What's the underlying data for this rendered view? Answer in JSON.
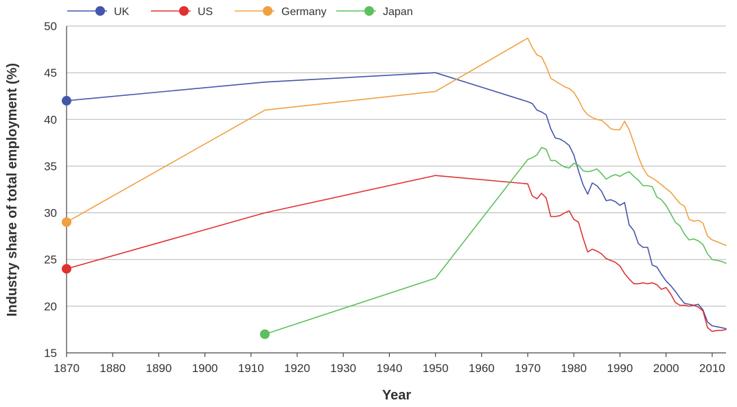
{
  "chart_data": {
    "type": "line",
    "title": "",
    "xlabel": "Year",
    "ylabel": "Industry share of total employment (%)",
    "xlim": [
      1870,
      2013
    ],
    "ylim": [
      15,
      50
    ],
    "x_ticks": [
      1870,
      1880,
      1890,
      1900,
      1910,
      1920,
      1930,
      1940,
      1950,
      1960,
      1970,
      1980,
      1990,
      2000,
      2010
    ],
    "y_ticks": [
      15,
      20,
      25,
      30,
      35,
      40,
      45,
      50
    ],
    "grid": "horizontal",
    "legend": "top-left",
    "series": [
      {
        "name": "UK",
        "color": "#4455aa",
        "start_marker": true,
        "points": [
          [
            1870,
            42.0
          ],
          [
            1913,
            44.0
          ],
          [
            1950,
            45.0
          ],
          [
            1970,
            41.9
          ],
          [
            1971,
            41.7
          ],
          [
            1972,
            41.0
          ],
          [
            1973,
            40.8
          ],
          [
            1974,
            40.5
          ],
          [
            1975,
            39.0
          ],
          [
            1976,
            38.0
          ],
          [
            1977,
            37.9
          ],
          [
            1978,
            37.6
          ],
          [
            1979,
            37.2
          ],
          [
            1980,
            36.2
          ],
          [
            1981,
            34.5
          ],
          [
            1982,
            33.0
          ],
          [
            1983,
            32.0
          ],
          [
            1984,
            33.2
          ],
          [
            1985,
            32.9
          ],
          [
            1986,
            32.3
          ],
          [
            1987,
            31.3
          ],
          [
            1988,
            31.4
          ],
          [
            1989,
            31.2
          ],
          [
            1990,
            30.8
          ],
          [
            1991,
            31.1
          ],
          [
            1992,
            28.7
          ],
          [
            1993,
            28.1
          ],
          [
            1994,
            26.7
          ],
          [
            1995,
            26.3
          ],
          [
            1996,
            26.3
          ],
          [
            1997,
            24.4
          ],
          [
            1998,
            24.2
          ],
          [
            1999,
            23.4
          ],
          [
            2000,
            22.7
          ],
          [
            2001,
            22.2
          ],
          [
            2002,
            21.6
          ],
          [
            2003,
            20.9
          ],
          [
            2004,
            20.3
          ],
          [
            2005,
            20.2
          ],
          [
            2006,
            20.1
          ],
          [
            2007,
            20.2
          ],
          [
            2008,
            19.6
          ],
          [
            2009,
            18.3
          ],
          [
            2010,
            17.9
          ],
          [
            2011,
            17.8
          ],
          [
            2012,
            17.7
          ],
          [
            2013,
            17.6
          ]
        ]
      },
      {
        "name": "US",
        "color": "#e03030",
        "start_marker": true,
        "points": [
          [
            1870,
            24.0
          ],
          [
            1913,
            30.0
          ],
          [
            1950,
            34.0
          ],
          [
            1970,
            33.1
          ],
          [
            1971,
            31.8
          ],
          [
            1972,
            31.5
          ],
          [
            1973,
            32.1
          ],
          [
            1974,
            31.6
          ],
          [
            1975,
            29.6
          ],
          [
            1976,
            29.6
          ],
          [
            1977,
            29.7
          ],
          [
            1978,
            30.0
          ],
          [
            1979,
            30.2
          ],
          [
            1980,
            29.3
          ],
          [
            1981,
            29.0
          ],
          [
            1982,
            27.3
          ],
          [
            1983,
            25.8
          ],
          [
            1984,
            26.1
          ],
          [
            1985,
            25.9
          ],
          [
            1986,
            25.6
          ],
          [
            1987,
            25.1
          ],
          [
            1988,
            24.9
          ],
          [
            1989,
            24.7
          ],
          [
            1990,
            24.3
          ],
          [
            1991,
            23.5
          ],
          [
            1992,
            22.9
          ],
          [
            1993,
            22.4
          ],
          [
            1994,
            22.4
          ],
          [
            1995,
            22.5
          ],
          [
            1996,
            22.4
          ],
          [
            1997,
            22.5
          ],
          [
            1998,
            22.3
          ],
          [
            1999,
            21.8
          ],
          [
            2000,
            22.0
          ],
          [
            2001,
            21.3
          ],
          [
            2002,
            20.4
          ],
          [
            2003,
            20.1
          ],
          [
            2004,
            20.1
          ],
          [
            2005,
            20.0
          ],
          [
            2006,
            20.1
          ],
          [
            2007,
            19.9
          ],
          [
            2008,
            19.5
          ],
          [
            2009,
            17.7
          ],
          [
            2010,
            17.3
          ],
          [
            2011,
            17.4
          ],
          [
            2012,
            17.4
          ],
          [
            2013,
            17.5
          ]
        ]
      },
      {
        "name": "Germany",
        "color": "#f0a040",
        "start_marker": true,
        "points": [
          [
            1870,
            29.0
          ],
          [
            1913,
            41.0
          ],
          [
            1950,
            43.0
          ],
          [
            1970,
            48.7
          ],
          [
            1971,
            47.7
          ],
          [
            1972,
            46.9
          ],
          [
            1973,
            46.7
          ],
          [
            1974,
            45.7
          ],
          [
            1975,
            44.4
          ],
          [
            1976,
            44.1
          ],
          [
            1977,
            43.8
          ],
          [
            1978,
            43.5
          ],
          [
            1979,
            43.3
          ],
          [
            1980,
            42.9
          ],
          [
            1981,
            42.1
          ],
          [
            1982,
            41.1
          ],
          [
            1983,
            40.5
          ],
          [
            1984,
            40.2
          ],
          [
            1985,
            40.0
          ],
          [
            1986,
            39.9
          ],
          [
            1987,
            39.5
          ],
          [
            1988,
            39.0
          ],
          [
            1989,
            38.9
          ],
          [
            1990,
            38.9
          ],
          [
            1991,
            39.8
          ],
          [
            1992,
            38.9
          ],
          [
            1993,
            37.5
          ],
          [
            1994,
            36.0
          ],
          [
            1995,
            34.8
          ],
          [
            1996,
            34.0
          ],
          [
            1997,
            33.7
          ],
          [
            1998,
            33.4
          ],
          [
            1999,
            33.0
          ],
          [
            2000,
            32.6
          ],
          [
            2001,
            32.2
          ],
          [
            2002,
            31.6
          ],
          [
            2003,
            31.0
          ],
          [
            2004,
            30.7
          ],
          [
            2005,
            29.3
          ],
          [
            2006,
            29.1
          ],
          [
            2007,
            29.2
          ],
          [
            2008,
            28.9
          ],
          [
            2009,
            27.5
          ],
          [
            2010,
            27.1
          ],
          [
            2011,
            26.9
          ],
          [
            2012,
            26.7
          ],
          [
            2013,
            26.5
          ]
        ]
      },
      {
        "name": "Japan",
        "color": "#5cc05c",
        "start_marker": true,
        "points": [
          [
            1913,
            17.0
          ],
          [
            1950,
            23.0
          ],
          [
            1970,
            35.7
          ],
          [
            1971,
            35.9
          ],
          [
            1972,
            36.2
          ],
          [
            1973,
            37.0
          ],
          [
            1974,
            36.8
          ],
          [
            1975,
            35.6
          ],
          [
            1976,
            35.6
          ],
          [
            1977,
            35.2
          ],
          [
            1978,
            34.9
          ],
          [
            1979,
            34.8
          ],
          [
            1980,
            35.3
          ],
          [
            1981,
            35.1
          ],
          [
            1982,
            34.5
          ],
          [
            1983,
            34.4
          ],
          [
            1984,
            34.5
          ],
          [
            1985,
            34.7
          ],
          [
            1986,
            34.2
          ],
          [
            1987,
            33.6
          ],
          [
            1988,
            33.9
          ],
          [
            1989,
            34.1
          ],
          [
            1990,
            33.9
          ],
          [
            1991,
            34.2
          ],
          [
            1992,
            34.4
          ],
          [
            1993,
            33.9
          ],
          [
            1994,
            33.5
          ],
          [
            1995,
            32.9
          ],
          [
            1996,
            32.9
          ],
          [
            1997,
            32.8
          ],
          [
            1998,
            31.7
          ],
          [
            1999,
            31.4
          ],
          [
            2000,
            30.8
          ],
          [
            2001,
            29.9
          ],
          [
            2002,
            29.0
          ],
          [
            2003,
            28.6
          ],
          [
            2004,
            27.7
          ],
          [
            2005,
            27.1
          ],
          [
            2006,
            27.2
          ],
          [
            2007,
            27.0
          ],
          [
            2008,
            26.6
          ],
          [
            2009,
            25.6
          ],
          [
            2010,
            25.0
          ],
          [
            2011,
            24.9
          ],
          [
            2012,
            24.8
          ],
          [
            2013,
            24.6
          ]
        ]
      }
    ]
  }
}
